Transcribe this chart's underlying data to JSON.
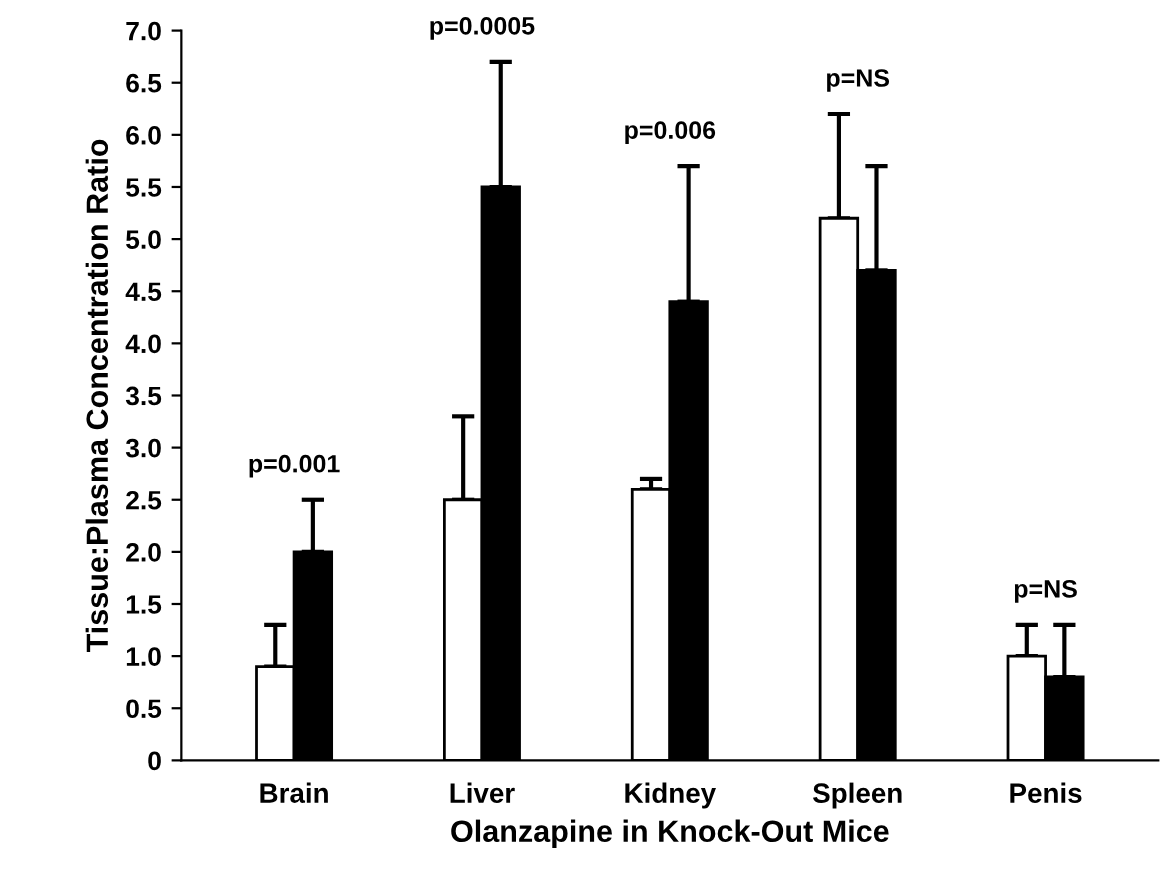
{
  "chart_data": {
    "type": "bar",
    "xlabel": "Olanzapine in Knock-Out Mice",
    "ylabel": "Tissue:Plasma Concentration Ratio",
    "categories": [
      "Brain",
      "Liver",
      "Kidney",
      "Spleen",
      "Penis"
    ],
    "series": [
      {
        "color": "#ffffff",
        "values": [
          0.9,
          2.5,
          2.6,
          5.2,
          1.0
        ],
        "errors": [
          [
            0.9,
            1.3
          ],
          [
            2.5,
            3.3
          ],
          [
            2.6,
            2.7
          ],
          [
            5.2,
            6.2
          ],
          [
            1.0,
            1.3
          ]
        ]
      },
      {
        "color": "#000000",
        "values": [
          2.0,
          5.5,
          4.4,
          4.7,
          0.8
        ],
        "errors": [
          [
            2.0,
            2.5
          ],
          [
            5.5,
            6.7
          ],
          [
            4.4,
            5.7
          ],
          [
            4.7,
            5.7
          ],
          [
            0.8,
            1.3
          ]
        ]
      }
    ],
    "annotations": [
      {
        "text": "p=0.001",
        "x": "Brain",
        "y": 2.5
      },
      {
        "text": "p=0.0005",
        "x": "Liver",
        "y": 6.7
      },
      {
        "text": "p=0.006",
        "x": "Kidney",
        "y": 5.7
      },
      {
        "text": "p=NS",
        "x": "Spleen",
        "y": 6.2
      },
      {
        "text": "p=NS",
        "x": "Penis",
        "y": 1.3
      }
    ],
    "ylim": [
      0,
      7
    ],
    "yticks": [
      {
        "value": 0,
        "label": "0"
      },
      {
        "value": 0.5,
        "label": "0.5"
      },
      {
        "value": 1,
        "label": "1.0"
      },
      {
        "value": 1.5,
        "label": "1.5"
      },
      {
        "value": 2,
        "label": "2.0"
      },
      {
        "value": 2.5,
        "label": "2.5"
      },
      {
        "value": 3,
        "label": "3.0"
      },
      {
        "value": 3.5,
        "label": "3.5"
      },
      {
        "value": 4,
        "label": "4.0"
      },
      {
        "value": 4.5,
        "label": "4.5"
      },
      {
        "value": 5,
        "label": "5.0"
      },
      {
        "value": 5.5,
        "label": "5.5"
      },
      {
        "value": 6,
        "label": "6.0"
      },
      {
        "value": 6.5,
        "label": "6.5"
      },
      {
        "value": 7,
        "label": "7.0"
      }
    ],
    "grid": false,
    "legend": false
  }
}
